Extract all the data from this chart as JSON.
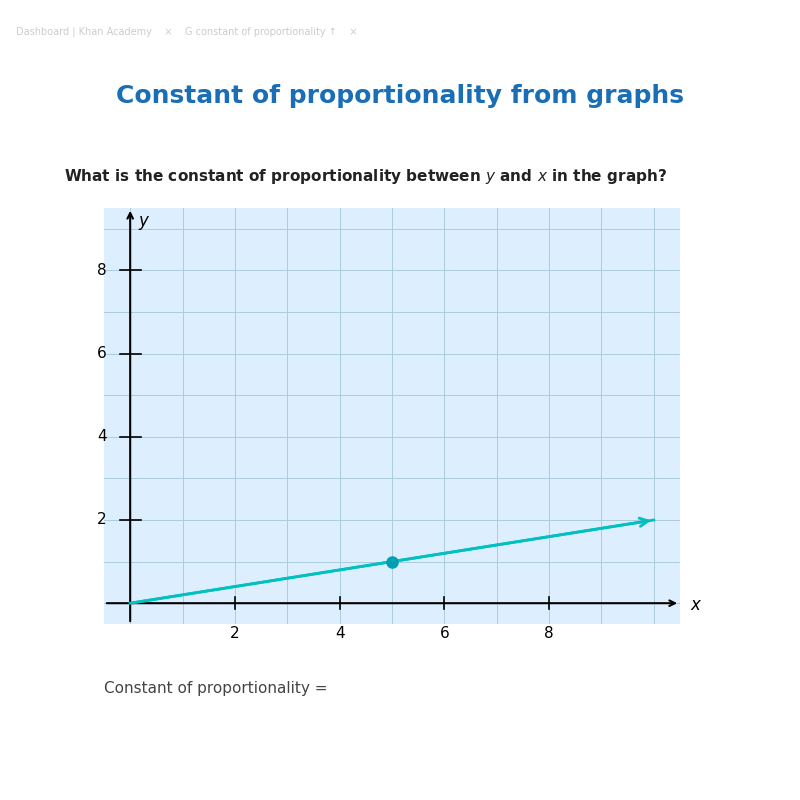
{
  "title": "Constant of proportionality from graphs",
  "title_color": "#1a6eb5",
  "question_text": "What is the constant of proportionality between $y$ and $x$ in the graph?",
  "footer_text": "Constant of proportionality =",
  "bg_color": "#ffffff",
  "grid_bg_color": "#ddeeff",
  "grid_line_color": "#aaccdd",
  "line_color": "#00c0c0",
  "dot_color": "#00a0b0",
  "xlim": [
    -0.5,
    10.5
  ],
  "ylim": [
    -0.5,
    9.5
  ],
  "xticks": [
    2,
    4,
    6,
    8
  ],
  "yticks": [
    2,
    4,
    6,
    8
  ],
  "xlabel": "x",
  "ylabel": "y",
  "line_x": [
    0,
    10
  ],
  "line_y": [
    0,
    2
  ],
  "dot_x": 5,
  "dot_y": 1,
  "slope": 0.2,
  "grid_minor_step": 1,
  "grid_major_step": 2
}
